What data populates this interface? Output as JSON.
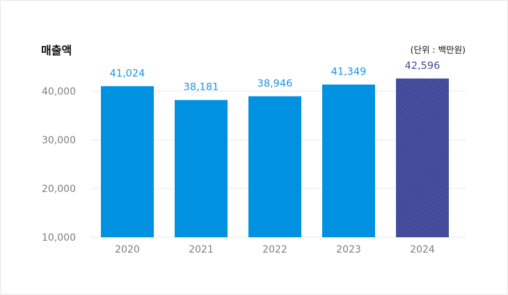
{
  "chart_data": {
    "type": "bar",
    "title": "매출액",
    "unit_label": "(단위 : 백만원)",
    "categories": [
      "2020",
      "2021",
      "2022",
      "2023",
      "2024"
    ],
    "values": [
      41024,
      38181,
      38946,
      41349,
      42596
    ],
    "value_labels": [
      "41,024",
      "38,181",
      "38,946",
      "41,349",
      "42,596"
    ],
    "yticks": [
      10000,
      20000,
      30000,
      40000
    ],
    "ytick_labels": [
      "10,000",
      "20,000",
      "30,000",
      "40,000"
    ],
    "ylim": [
      10000,
      44000
    ],
    "grid": true,
    "highlight_index": 4,
    "colors": {
      "bar": "#0091e1",
      "highlight_bar": "#404a98",
      "label": "#1a93e6",
      "highlight_label": "#404a98",
      "grid": "#e8e8e8"
    }
  }
}
